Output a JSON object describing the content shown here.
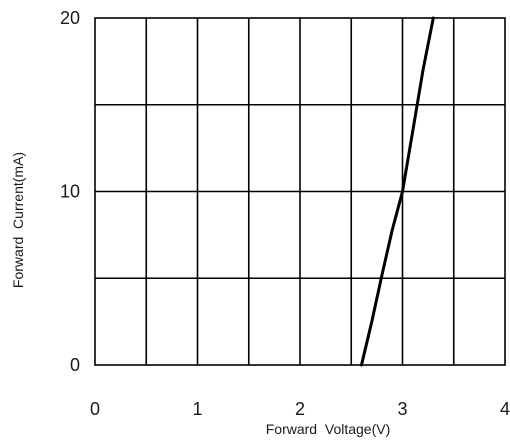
{
  "chart_data": {
    "type": "line",
    "title": "",
    "xlabel": "Forward  Voltage(V)",
    "ylabel": "Forward  Current(mA)",
    "xlim": [
      0,
      4
    ],
    "ylim": [
      0,
      20
    ],
    "x_ticks": [
      0,
      1,
      2,
      3,
      4
    ],
    "y_ticks": [
      0,
      10,
      20
    ],
    "x_tick_labels": [
      "0",
      "1",
      "2",
      "3",
      "4"
    ],
    "y_tick_labels": [
      "0",
      "10",
      "20"
    ],
    "x_grid_step": 0.5,
    "y_grid_step": 5,
    "grid": true,
    "legend": "none",
    "series": [
      {
        "x": [
          2.6,
          2.7,
          2.8,
          2.9,
          3.0,
          3.1,
          3.2,
          3.3
        ],
        "y": [
          0,
          2.5,
          5.2,
          7.8,
          10.0,
          13.5,
          17.0,
          20.0
        ]
      }
    ]
  }
}
